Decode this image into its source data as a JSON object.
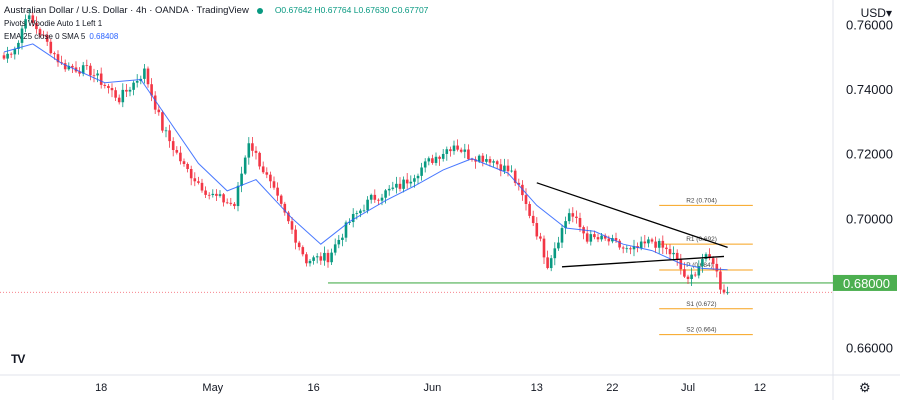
{
  "header": {
    "symbol_line": "Australian Dollar / U.S. Dollar · 4h · OANDA · TradingView",
    "ohlc": "O0.67642 H0.67764 L0.67630 C0.67707",
    "pivots_line": "Pivots Woodie Auto 1 Left 1",
    "ema_line": "EMA 25 close 0 SMA 5",
    "ema_value": "0.68408"
  },
  "currency_label": "USD",
  "logo_text": "TV",
  "colors": {
    "up": "#089981",
    "down": "#f23645",
    "ema": "#2962ff",
    "support": "#4caf50",
    "pivot": "#f7a21b",
    "trend": "#000000"
  },
  "chart_data": {
    "type": "candlestick",
    "title": "Australian Dollar / U.S. Dollar",
    "ylim": [
      0.6515,
      0.7676
    ],
    "y_ticks": [
      "0.76000",
      "0.74000",
      "0.72000",
      "0.70000",
      "0.68000",
      "0.66000"
    ],
    "y_tick_values": [
      0.76,
      0.74,
      0.72,
      0.7,
      0.68,
      0.66
    ],
    "x_ticks": [
      "18",
      "May",
      "16",
      "Jun",
      "13",
      "22",
      "Jul",
      "12"
    ],
    "x_tick_index": [
      27,
      58,
      86,
      119,
      148,
      169,
      190,
      210
    ],
    "num_bars": 222,
    "price_points": [
      [
        0,
        0.7495
      ],
      [
        4,
        0.7545
      ],
      [
        6,
        0.763
      ],
      [
        10,
        0.7575
      ],
      [
        16,
        0.7475
      ],
      [
        24,
        0.7455
      ],
      [
        32,
        0.737
      ],
      [
        39,
        0.7455
      ],
      [
        44,
        0.728
      ],
      [
        50,
        0.716
      ],
      [
        57,
        0.7075
      ],
      [
        64,
        0.704
      ],
      [
        68,
        0.724
      ],
      [
        72,
        0.715
      ],
      [
        78,
        0.701
      ],
      [
        84,
        0.687
      ],
      [
        90,
        0.688
      ],
      [
        96,
        0.699
      ],
      [
        102,
        0.706
      ],
      [
        110,
        0.71
      ],
      [
        118,
        0.7175
      ],
      [
        125,
        0.723
      ],
      [
        129,
        0.7195
      ],
      [
        135,
        0.7185
      ],
      [
        141,
        0.714
      ],
      [
        147,
        0.699
      ],
      [
        151,
        0.686
      ],
      [
        157,
        0.702
      ],
      [
        162,
        0.694
      ],
      [
        168,
        0.693
      ],
      [
        174,
        0.6895
      ],
      [
        180,
        0.693
      ],
      [
        186,
        0.6885
      ],
      [
        190,
        0.68
      ],
      [
        194,
        0.6875
      ],
      [
        197,
        0.687
      ],
      [
        199,
        0.679
      ],
      [
        201,
        0.677
      ]
    ],
    "ema": [
      [
        0,
        0.7515
      ],
      [
        8,
        0.754
      ],
      [
        16,
        0.748
      ],
      [
        28,
        0.742
      ],
      [
        38,
        0.743
      ],
      [
        46,
        0.73
      ],
      [
        54,
        0.717
      ],
      [
        62,
        0.7085
      ],
      [
        70,
        0.712
      ],
      [
        80,
        0.7
      ],
      [
        88,
        0.692
      ],
      [
        96,
        0.699
      ],
      [
        106,
        0.7055
      ],
      [
        114,
        0.71
      ],
      [
        122,
        0.715
      ],
      [
        130,
        0.7185
      ],
      [
        140,
        0.714
      ],
      [
        148,
        0.704
      ],
      [
        156,
        0.697
      ],
      [
        164,
        0.696
      ],
      [
        172,
        0.692
      ],
      [
        180,
        0.69
      ],
      [
        188,
        0.686
      ],
      [
        194,
        0.6845
      ],
      [
        201,
        0.6841
      ]
    ],
    "support_level": 0.68,
    "support_label": "0.68000",
    "support_start_index": 90,
    "current_price": 0.6771,
    "trendlines": [
      {
        "from": [
          148,
          0.711
        ],
        "to": [
          201,
          0.691
        ]
      },
      {
        "from": [
          155,
          0.685
        ],
        "to": [
          200,
          0.6882
        ]
      }
    ],
    "pivot_levels": [
      {
        "label": "R2 (0.704)",
        "value": 0.704
      },
      {
        "label": "R1 (0.692)",
        "value": 0.692
      },
      {
        "label": "P (0.684)",
        "value": 0.684
      },
      {
        "label": "S1 (0.672)",
        "value": 0.672
      },
      {
        "label": "S2 (0.664)",
        "value": 0.664
      }
    ],
    "pivot_start_index": 182,
    "pivot_end_index": 208,
    "grid": false
  }
}
